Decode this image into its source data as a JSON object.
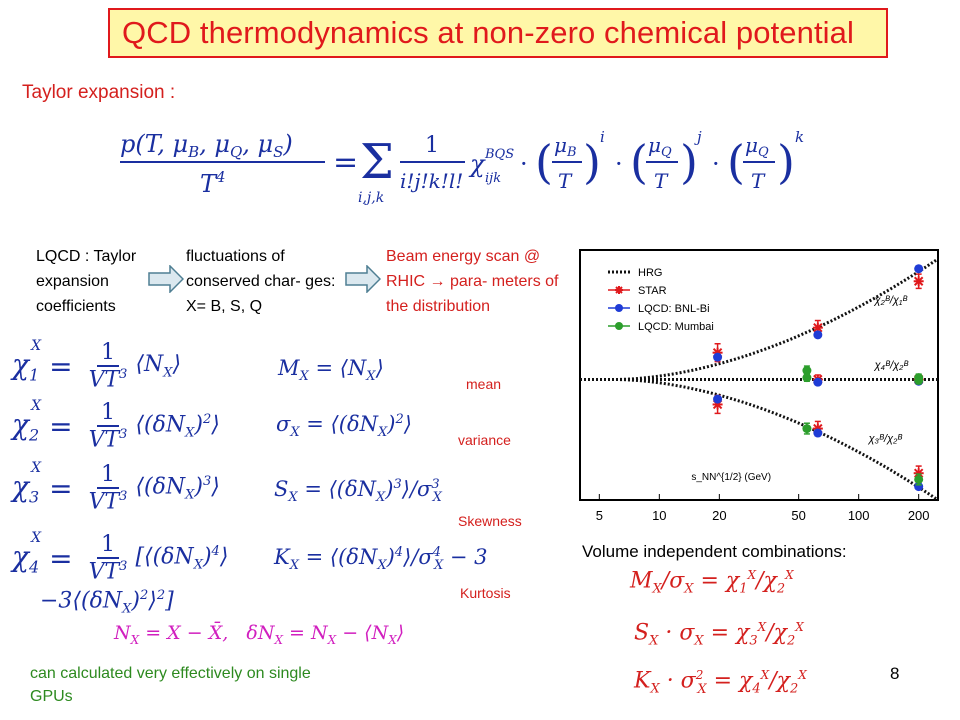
{
  "slide": {
    "title": "QCD thermodynamics at non-zero chemical potential",
    "subtitle": "Taylor expansion :",
    "page_number": "8",
    "footer_note": "can calculated very effectively on single GPUs",
    "volume_heading": "Volume independent combinations:"
  },
  "colors": {
    "title_red": "#e0191c",
    "title_fill": "#fff7a8",
    "equation_blue": "#1a2fa0",
    "label_red": "#d4201e",
    "note_green": "#2d8a1f"
  },
  "icons": {
    "arrow": "right-arrow-icon"
  },
  "flow": {
    "box1": "LQCD : Taylor expansion coefficients",
    "box2": "fluctuations of conserved char- ges: X= B, S, Q",
    "box3": "Beam energy scan @ RHIC → para- meters of the distribution"
  },
  "labels": {
    "mean": "mean",
    "variance": "variance",
    "skewness": "Skewness",
    "kurtosis": "Kurtosis"
  },
  "equations": {
    "taylor_lhs_num": "p(T, μ_B, μ_Q, μ_S)",
    "taylor_lhs_den": "T⁴",
    "taylor_rhs": "= Σ_{i,j,k} 1/(i!j!k!l!) χ^{BQS}_{ijk} · (μ_B/T)^i · (μ_Q/T)^j · (μ_Q/T)^k",
    "chi1": "χ₁ˣ = 1/(VT³) ⟨N_X⟩",
    "chi2": "χ₂ˣ = 1/(VT³) ⟨(δN_X)²⟩",
    "chi3": "χ₃ˣ = 1/(VT³) ⟨(δN_X)³⟩",
    "chi4": "χ₄ˣ = 1/(VT³) [⟨(δN_X)⁴⟩ −3⟨(δN_X)²⟩²]",
    "mean": "M_X = ⟨N_X⟩",
    "sigma": "σ_X = ⟨(δN_X)²⟩",
    "skew": "S_X = ⟨(δN_X)³⟩/σ³_X",
    "kurt": "K_X = ⟨(δN_X)⁴⟩/σ⁴_X − 3",
    "defs": "N_X = X − X̄,   δN_X = N_X − ⟨N_X⟩",
    "ratio1": "M_X/σ_X = χ₁ˣ/χ₂ˣ",
    "ratio2": "S_X · σ_X = χ₃ˣ/χ₂ˣ",
    "ratio3": "K_X · σ²_X = χ₄ˣ/χ₂ˣ"
  },
  "chart_data": {
    "type": "scatter",
    "x_scale": "log",
    "xlim": [
      4,
      250
    ],
    "x_ticks": [
      "5",
      "10",
      "20",
      "50",
      "100",
      "200"
    ],
    "xlabel": "s_NN^{1/2} (GeV)",
    "ylabel": "",
    "legend_position": "top-left",
    "legend": [
      "HRG",
      "STAR",
      "LQCD: BNL-Bi",
      "LQCD: Mumbai"
    ],
    "curve_labels": [
      "χ₂ᴮ/χ₁ᴮ",
      "χ₄ᴮ/χ₂ᴮ",
      "χ₃ᴮ/χ₂ᴮ"
    ],
    "series": [
      {
        "name": "STAR",
        "color": "#e0191c",
        "marker": "star",
        "x": [
          19.6,
          19.6,
          62.4,
          62.4,
          62.4,
          200,
          200,
          200
        ],
        "y": [
          0.3,
          -0.28,
          0.58,
          0.0,
          -0.55,
          1.1,
          0.0,
          -1.05
        ],
        "err": [
          0.1,
          0.1,
          0.08,
          0.05,
          0.08,
          0.08,
          0.05,
          0.08
        ]
      },
      {
        "name": "LQCD: BNL-Bi",
        "color": "#1f3cd6",
        "marker": "circle",
        "x": [
          19.6,
          19.6,
          62.4,
          62.4,
          62.4,
          200,
          200,
          200
        ],
        "y": [
          0.25,
          -0.22,
          0.5,
          -0.03,
          -0.6,
          1.24,
          -0.02,
          -1.2
        ],
        "err": [
          0.03,
          0.03,
          0.03,
          0.03,
          0.03,
          0.03,
          0.03,
          0.03
        ]
      },
      {
        "name": "LQCD: Mumbai",
        "color": "#2c9e2c",
        "marker": "circle",
        "x": [
          55,
          55,
          55,
          200,
          200,
          200
        ],
        "y": [
          0.1,
          0.02,
          -0.55,
          0.02,
          -0.01,
          -1.12
        ],
        "err": [
          0.05,
          0.04,
          0.06,
          0.04,
          0.04,
          0.06
        ]
      }
    ]
  }
}
